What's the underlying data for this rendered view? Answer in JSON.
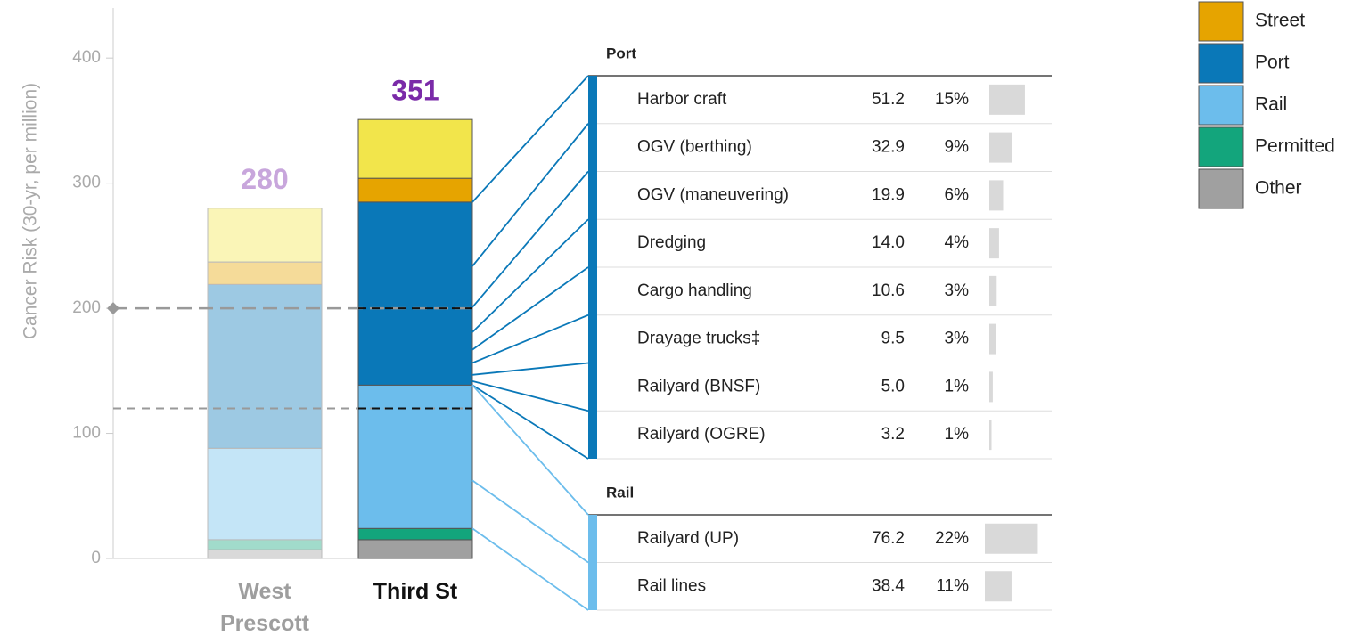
{
  "chart_data": {
    "type": "stacked_bar",
    "y_label": "Cancer Risk (30-yr, per million)",
    "categories": [
      "West Prescott",
      "Third St"
    ],
    "category_colors": [
      "#9e9e9e",
      "#111111"
    ],
    "category_opacity": [
      0.4,
      1
    ],
    "totals": [
      280,
      351
    ],
    "total_colors": [
      "#c8a6dc",
      "#7a2aa8"
    ],
    "ylim": [
      0,
      440
    ],
    "yticks": [
      0,
      100,
      200,
      300,
      400
    ],
    "reference_lines": [
      {
        "value": 200,
        "marker": true
      },
      {
        "value": 120,
        "marker": false
      }
    ],
    "series": [
      {
        "name": "Other",
        "color": "#a0a0a0",
        "values": [
          7,
          15
        ]
      },
      {
        "name": "Permitted",
        "color": "#13a57c",
        "values": [
          8,
          9
        ]
      },
      {
        "name": "Rail",
        "color": "#6cbdec",
        "values": [
          73,
          114.6
        ]
      },
      {
        "name": "Port",
        "color": "#0a78b8",
        "values": [
          131,
          146.3
        ]
      },
      {
        "name": "Street",
        "color": "#e6a400",
        "values": [
          18,
          19
        ]
      },
      {
        "color": "#f2e54b",
        "values": [
          43,
          47
        ]
      }
    ],
    "breakdown": [
      {
        "title": "Port",
        "rows": [
          {
            "name": "Harbor craft",
            "value": 51.2,
            "value_label": "51.2",
            "share": "15%"
          },
          {
            "name": "OGV (berthing)",
            "value": 32.9,
            "value_label": "32.9",
            "share": "9%"
          },
          {
            "name": "OGV (maneuvering)",
            "value": 19.9,
            "value_label": "19.9",
            "share": "6%"
          },
          {
            "name": "Dredging",
            "value": 14.0,
            "value_label": "14.0",
            "share": "4%"
          },
          {
            "name": "Cargo handling",
            "value": 10.6,
            "value_label": "10.6",
            "share": "3%"
          },
          {
            "name": "Drayage trucks‡",
            "value": 9.5,
            "value_label": "9.5",
            "share": "3%"
          },
          {
            "name": "Railyard (BNSF)",
            "value": 5.0,
            "value_label": "5.0",
            "share": "1%"
          },
          {
            "name": "Railyard (OGRE)",
            "value": 3.2,
            "value_label": "3.2",
            "share": "1%"
          }
        ]
      },
      {
        "title": "Rail",
        "rows": [
          {
            "name": "Railyard (UP)",
            "value": 76.2,
            "value_label": "76.2",
            "share": "22%"
          },
          {
            "name": "Rail lines",
            "value": 38.4,
            "value_label": "38.4",
            "share": "11%"
          }
        ]
      }
    ]
  }
}
